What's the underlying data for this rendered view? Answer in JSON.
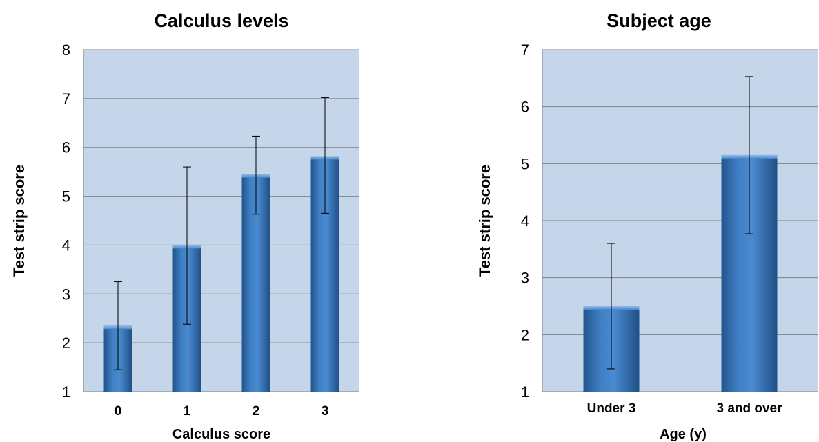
{
  "chart_data": [
    {
      "type": "bar",
      "title": "Calculus levels",
      "xlabel": "Calculus score",
      "ylabel": "Test strip score",
      "categories": [
        "0",
        "1",
        "2",
        "3"
      ],
      "values": [
        2.35,
        4.0,
        5.45,
        5.82
      ],
      "error_low": [
        1.45,
        2.38,
        4.63,
        4.65
      ],
      "error_high": [
        3.25,
        5.6,
        6.23,
        7.02
      ],
      "ylim": [
        1,
        8
      ],
      "yticks": [
        "1",
        "2",
        "3",
        "4",
        "5",
        "6",
        "7",
        "8"
      ],
      "grid": true,
      "colors": {
        "plot_bg": "#c5d5ea",
        "bar": "#3d7bbf",
        "bar_dark": "#23558e",
        "bar_light": "#7eaee0",
        "grid": "#7f7f7f"
      }
    },
    {
      "type": "bar",
      "title": "Subject age",
      "xlabel": "Age (y)",
      "ylabel": "Test strip score",
      "categories": [
        "Under 3",
        "3 and over"
      ],
      "values": [
        2.5,
        5.15
      ],
      "error_low": [
        1.4,
        3.77
      ],
      "error_high": [
        3.6,
        6.53
      ],
      "ylim": [
        1,
        7
      ],
      "yticks": [
        "1",
        "2",
        "3",
        "4",
        "5",
        "6",
        "7"
      ],
      "grid": true,
      "colors": {
        "plot_bg": "#c5d5ea",
        "bar": "#3d7bbf",
        "bar_dark": "#23558e",
        "bar_light": "#7eaee0",
        "grid": "#7f7f7f"
      }
    }
  ]
}
